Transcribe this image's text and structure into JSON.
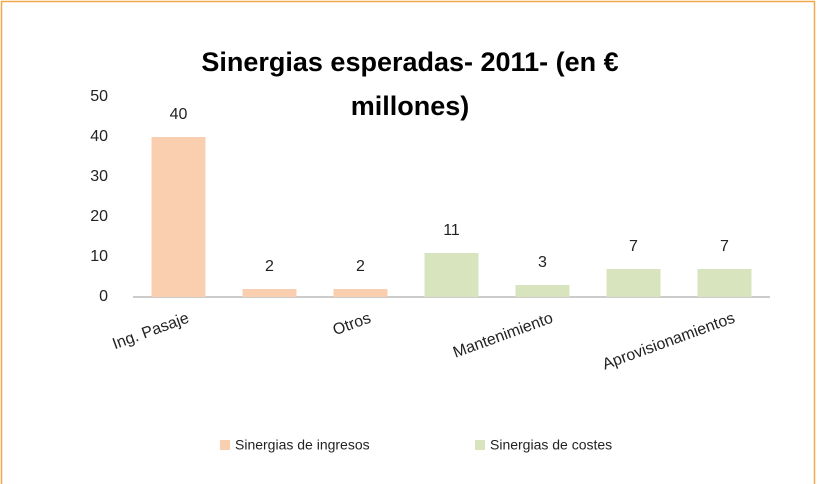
{
  "chart_data": {
    "type": "bar",
    "title": "Sinergias esperadas- 2011- (en € millones)",
    "categories": [
      "Ing. Pasaje",
      null,
      "Otros",
      null,
      "Mantenimiento",
      null,
      "Aprovisionamientos"
    ],
    "series": [
      {
        "name": "Sinergias de ingresos",
        "color": "#f9cfb0",
        "values": [
          40,
          2,
          2,
          null,
          null,
          null,
          null
        ]
      },
      {
        "name": "Sinergias de costes",
        "color": "#d7e4bd",
        "values": [
          null,
          null,
          null,
          11,
          3,
          7,
          7
        ]
      }
    ],
    "ylim": [
      0,
      50
    ],
    "yticks": [
      0,
      10,
      20,
      30,
      40,
      50
    ],
    "grid": false,
    "legend": "bottom"
  }
}
